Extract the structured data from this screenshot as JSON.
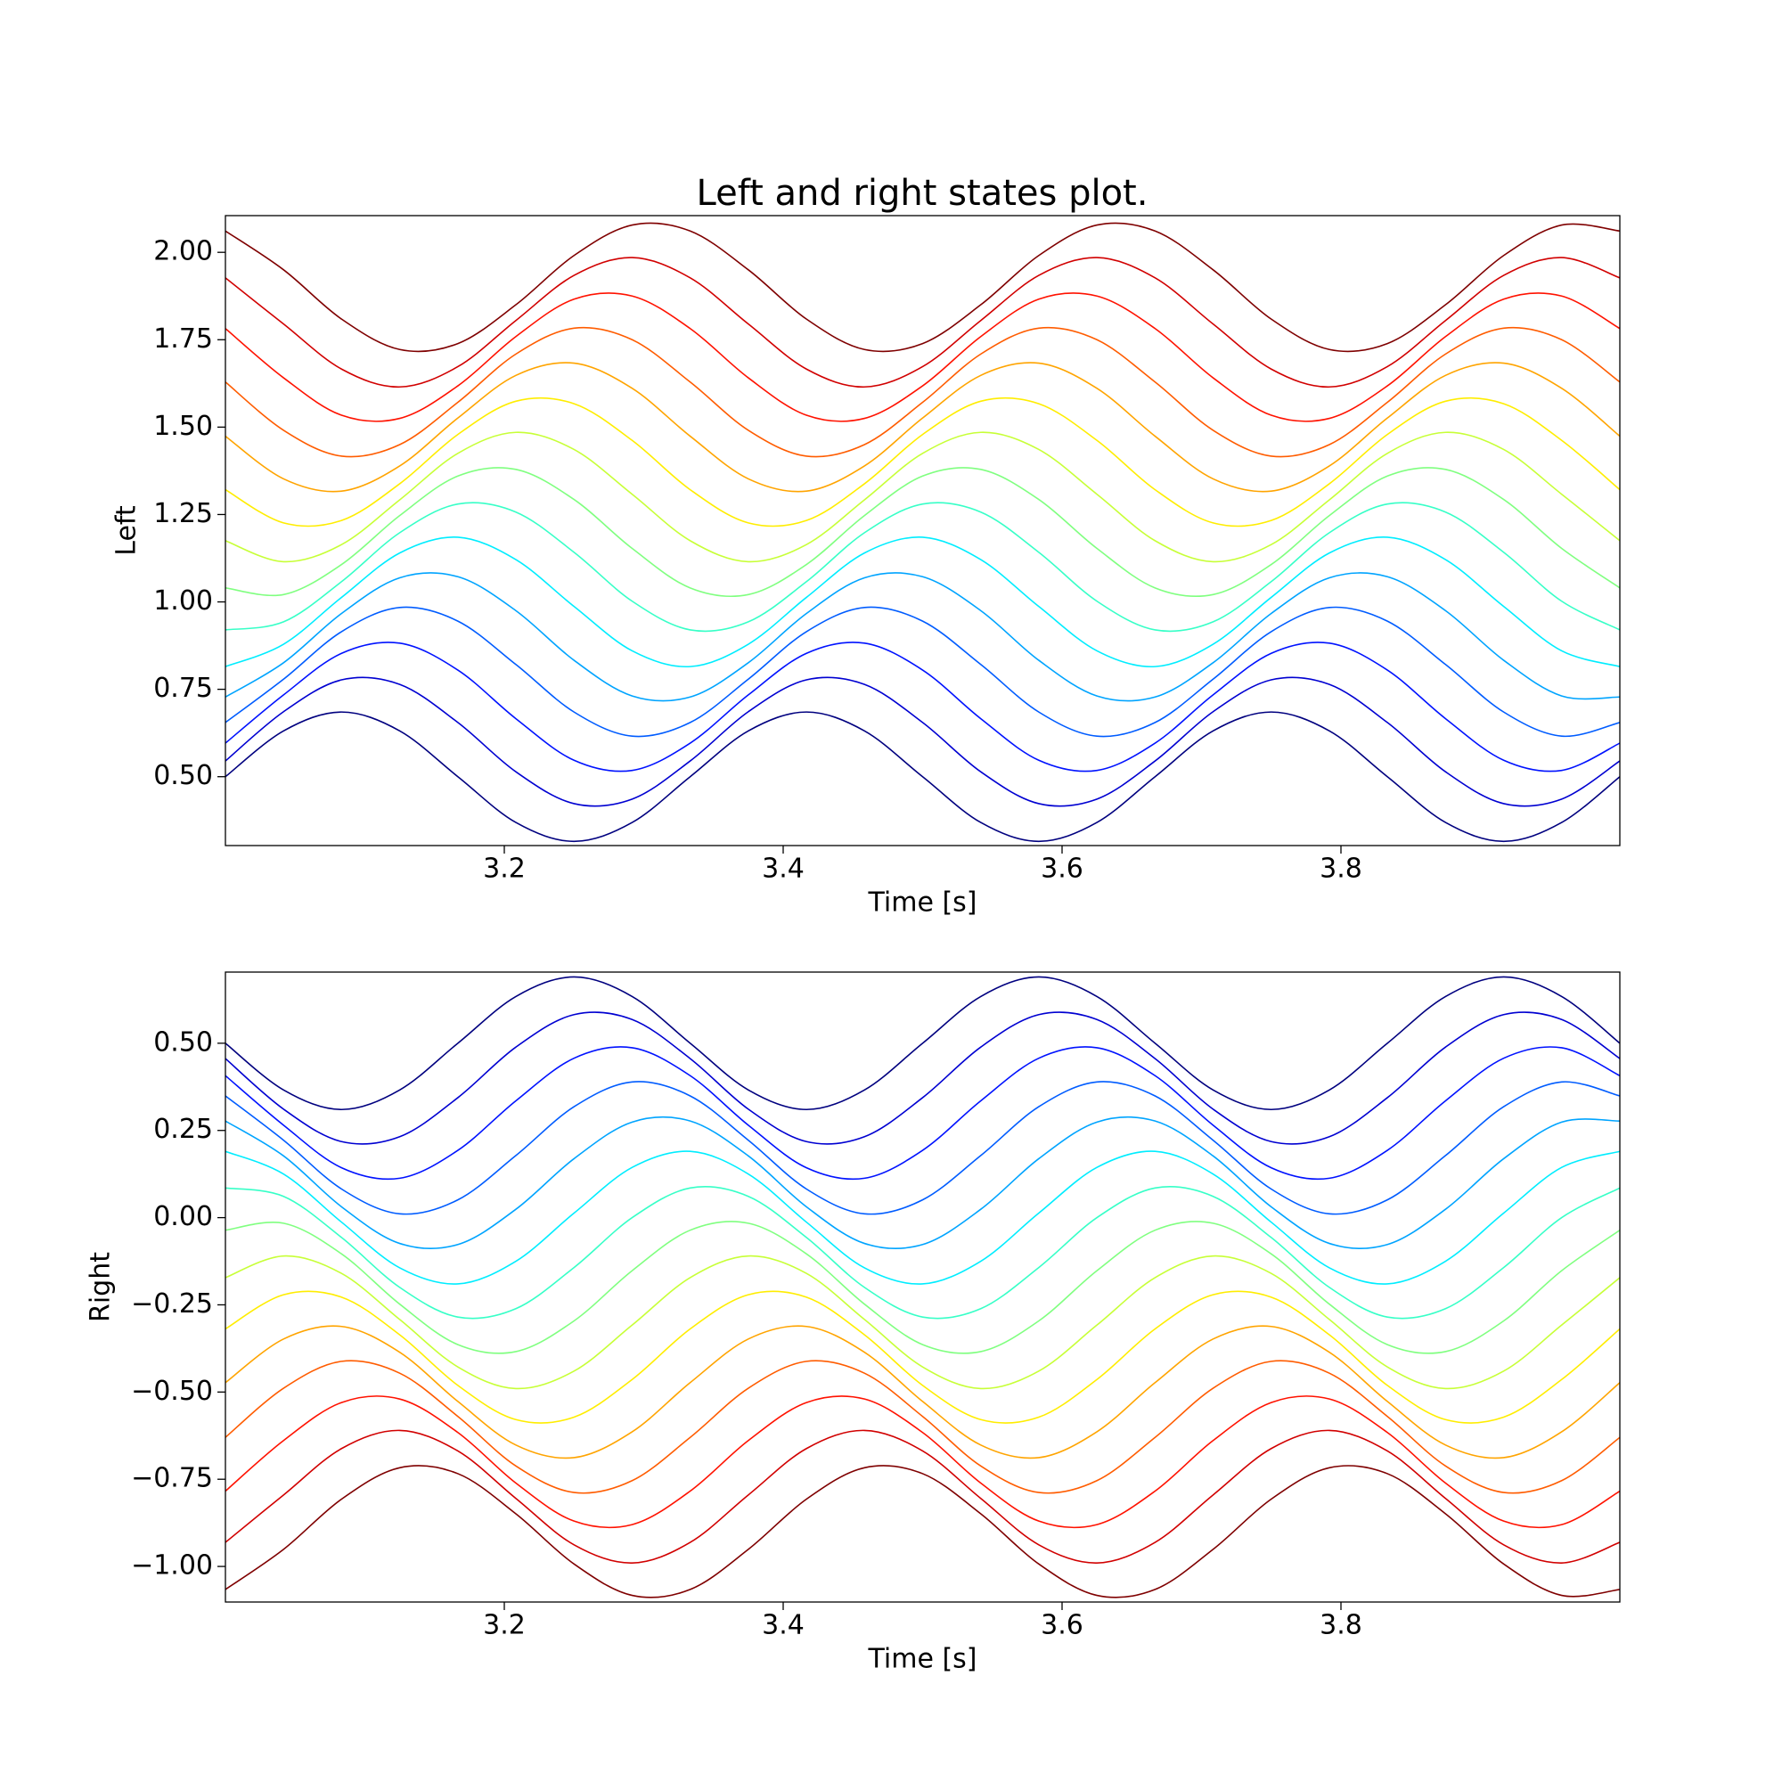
{
  "chart_data": [
    {
      "type": "line",
      "title": "Left and right states plot.",
      "xlabel": "Time [s]",
      "ylabel": "Left",
      "x": [
        3.0,
        3.0417,
        3.0833,
        3.125,
        3.1667,
        3.2083,
        3.25,
        3.2917,
        3.3333,
        3.375,
        3.4167,
        3.4583,
        3.5,
        3.5417,
        3.5833,
        3.625,
        3.6667,
        3.7083,
        3.75,
        3.7917,
        3.8333,
        3.875,
        3.9167,
        3.9583,
        4.0
      ],
      "xlim": [
        3.0,
        4.0
      ],
      "xticks": [
        3.2,
        3.4,
        3.6,
        3.8
      ],
      "ylim": [
        0.303,
        2.105
      ],
      "yticks": [
        {
          "value": 0.5,
          "label": "0.50"
        },
        {
          "value": 0.75,
          "label": "0.75"
        },
        {
          "value": 1,
          "label": "1.00"
        },
        {
          "value": 1.25,
          "label": "1.25"
        },
        {
          "value": 1.5,
          "label": "1.50"
        },
        {
          "value": 1.75,
          "label": "1.75"
        },
        {
          "value": 2,
          "label": "2.00"
        }
      ],
      "series": [
        {
          "color": "#00007f",
          "values": [
            0.5,
            0.631,
            0.685,
            0.631,
            0.5,
            0.369,
            0.315,
            0.369,
            0.5,
            0.631,
            0.685,
            0.631,
            0.5,
            0.369,
            0.315,
            0.369,
            0.5,
            0.631,
            0.685,
            0.631,
            0.5,
            0.369,
            0.315,
            0.369,
            0.5
          ]
        },
        {
          "color": "#0000d1",
          "values": [
            0.545,
            0.686,
            0.777,
            0.764,
            0.655,
            0.514,
            0.423,
            0.436,
            0.545,
            0.686,
            0.777,
            0.764,
            0.655,
            0.514,
            0.423,
            0.436,
            0.545,
            0.686,
            0.777,
            0.764,
            0.655,
            0.514,
            0.423,
            0.436,
            0.545
          ]
        },
        {
          "color": "#0012ff",
          "values": [
            0.596,
            0.734,
            0.853,
            0.882,
            0.805,
            0.666,
            0.547,
            0.518,
            0.596,
            0.734,
            0.853,
            0.882,
            0.805,
            0.666,
            0.547,
            0.518,
            0.596,
            0.734,
            0.853,
            0.882,
            0.805,
            0.666,
            0.547,
            0.518,
            0.596
          ]
        },
        {
          "color": "#005cff",
          "values": [
            0.655,
            0.779,
            0.915,
            0.984,
            0.945,
            0.821,
            0.685,
            0.616,
            0.655,
            0.779,
            0.915,
            0.984,
            0.945,
            0.821,
            0.685,
            0.616,
            0.655,
            0.779,
            0.915,
            0.984,
            0.945,
            0.821,
            0.685,
            0.616,
            0.655
          ]
        },
        {
          "color": "#00a4ff",
          "values": [
            0.728,
            0.826,
            0.967,
            1.069,
            1.072,
            0.975,
            0.833,
            0.731,
            0.728,
            0.826,
            0.967,
            1.069,
            1.072,
            0.975,
            0.833,
            0.731,
            0.728,
            0.826,
            0.967,
            1.069,
            1.072,
            0.975,
            0.833,
            0.731,
            0.728
          ]
        },
        {
          "color": "#00edff",
          "values": [
            0.815,
            0.879,
            1.013,
            1.14,
            1.185,
            1.121,
            0.987,
            0.86,
            0.815,
            0.879,
            1.013,
            1.14,
            1.185,
            1.121,
            0.987,
            0.86,
            0.815,
            0.879,
            1.013,
            1.14,
            1.185,
            1.121,
            0.987,
            0.86,
            0.815
          ]
        },
        {
          "color": "#37ffc7",
          "values": [
            0.92,
            0.943,
            1.058,
            1.198,
            1.28,
            1.257,
            1.142,
            1.002,
            0.92,
            0.943,
            1.058,
            1.198,
            1.28,
            1.257,
            1.142,
            1.002,
            0.92,
            0.943,
            1.058,
            1.198,
            1.28,
            1.257,
            1.142,
            1.002,
            0.92
          ]
        },
        {
          "color": "#80ff80",
          "values": [
            1.04,
            1.021,
            1.107,
            1.247,
            1.36,
            1.379,
            1.293,
            1.153,
            1.04,
            1.021,
            1.107,
            1.247,
            1.36,
            1.379,
            1.293,
            1.153,
            1.04,
            1.021,
            1.107,
            1.247,
            1.36,
            1.379,
            1.293,
            1.153,
            1.04
          ]
        },
        {
          "color": "#c7ff37",
          "values": [
            1.175,
            1.115,
            1.164,
            1.292,
            1.425,
            1.485,
            1.436,
            1.308,
            1.175,
            1.115,
            1.164,
            1.292,
            1.425,
            1.485,
            1.436,
            1.308,
            1.175,
            1.115,
            1.164,
            1.292,
            1.425,
            1.485,
            1.436,
            1.308,
            1.175
          ]
        },
        {
          "color": "#ffed00",
          "values": [
            1.321,
            1.226,
            1.233,
            1.338,
            1.479,
            1.574,
            1.567,
            1.462,
            1.321,
            1.226,
            1.233,
            1.338,
            1.479,
            1.574,
            1.567,
            1.462,
            1.321,
            1.226,
            1.233,
            1.338,
            1.479,
            1.574,
            1.567,
            1.462,
            1.321
          ]
        },
        {
          "color": "#ffa400",
          "values": [
            1.474,
            1.352,
            1.317,
            1.389,
            1.526,
            1.648,
            1.683,
            1.611,
            1.474,
            1.352,
            1.317,
            1.389,
            1.526,
            1.648,
            1.683,
            1.611,
            1.474,
            1.352,
            1.317,
            1.389,
            1.526,
            1.648,
            1.683,
            1.611,
            1.474
          ]
        },
        {
          "color": "#ff5c00",
          "values": [
            1.629,
            1.491,
            1.417,
            1.45,
            1.571,
            1.709,
            1.783,
            1.75,
            1.629,
            1.491,
            1.417,
            1.45,
            1.571,
            1.709,
            1.783,
            1.75,
            1.629,
            1.491,
            1.417,
            1.45,
            1.571,
            1.709,
            1.783,
            1.75,
            1.629
          ]
        },
        {
          "color": "#ff1200",
          "values": [
            1.782,
            1.641,
            1.534,
            1.525,
            1.618,
            1.759,
            1.866,
            1.875,
            1.782,
            1.641,
            1.534,
            1.525,
            1.618,
            1.759,
            1.866,
            1.875,
            1.782,
            1.641,
            1.534,
            1.525,
            1.618,
            1.759,
            1.866,
            1.875,
            1.782
          ]
        },
        {
          "color": "#d10000",
          "values": [
            1.927,
            1.795,
            1.666,
            1.615,
            1.673,
            1.805,
            1.934,
            1.985,
            1.927,
            1.795,
            1.666,
            1.615,
            1.673,
            1.805,
            1.934,
            1.985,
            1.927,
            1.795,
            1.666,
            1.615,
            1.673,
            1.805,
            1.934,
            1.985,
            1.927
          ]
        },
        {
          "color": "#7f0000",
          "values": [
            2.061,
            1.95,
            1.809,
            1.722,
            1.739,
            1.85,
            1.991,
            2.078,
            2.061,
            1.95,
            1.809,
            1.722,
            1.739,
            1.85,
            1.991,
            2.078,
            2.061,
            1.95,
            1.809,
            1.722,
            1.739,
            1.85,
            1.991,
            2.078,
            2.061
          ]
        }
      ]
    },
    {
      "type": "line",
      "xlabel": "Time [s]",
      "ylabel": "Right",
      "x": [
        3.0,
        3.0417,
        3.0833,
        3.125,
        3.1667,
        3.2083,
        3.25,
        3.2917,
        3.3333,
        3.375,
        3.4167,
        3.4583,
        3.5,
        3.5417,
        3.5833,
        3.625,
        3.6667,
        3.7083,
        3.75,
        3.7917,
        3.8333,
        3.875,
        3.9167,
        3.9583,
        4.0
      ],
      "xlim": [
        3.0,
        4.0
      ],
      "xticks": [
        3.2,
        3.4,
        3.6,
        3.8
      ],
      "ylim": [
        -1.102,
        0.704
      ],
      "yticks": [
        {
          "value": -1,
          "label": "−1.00"
        },
        {
          "value": -0.75,
          "label": "−0.75"
        },
        {
          "value": -0.5,
          "label": "−0.50"
        },
        {
          "value": -0.25,
          "label": "−0.25"
        },
        {
          "value": 0,
          "label": "0.00"
        },
        {
          "value": 0.25,
          "label": "0.25"
        },
        {
          "value": 0.5,
          "label": "0.50"
        }
      ],
      "series": [
        {
          "color": "#00007f",
          "values": [
            0.5,
            0.366,
            0.31,
            0.366,
            0.5,
            0.634,
            0.69,
            0.634,
            0.5,
            0.366,
            0.31,
            0.366,
            0.5,
            0.634,
            0.69,
            0.634,
            0.5,
            0.366,
            0.31,
            0.366,
            0.5,
            0.634,
            0.69,
            0.634,
            0.5
          ]
        },
        {
          "color": "#0000d1",
          "values": [
            0.456,
            0.311,
            0.218,
            0.232,
            0.344,
            0.489,
            0.582,
            0.568,
            0.456,
            0.311,
            0.218,
            0.232,
            0.344,
            0.489,
            0.582,
            0.568,
            0.456,
            0.311,
            0.218,
            0.232,
            0.344,
            0.489,
            0.582,
            0.568,
            0.456
          ]
        },
        {
          "color": "#0012ff",
          "values": [
            0.407,
            0.265,
            0.143,
            0.113,
            0.193,
            0.335,
            0.457,
            0.487,
            0.407,
            0.265,
            0.143,
            0.113,
            0.193,
            0.335,
            0.457,
            0.487,
            0.407,
            0.265,
            0.143,
            0.113,
            0.193,
            0.335,
            0.457,
            0.487,
            0.407
          ]
        },
        {
          "color": "#005cff",
          "values": [
            0.349,
            0.222,
            0.082,
            0.011,
            0.051,
            0.178,
            0.318,
            0.389,
            0.349,
            0.222,
            0.082,
            0.011,
            0.051,
            0.178,
            0.318,
            0.389,
            0.349,
            0.222,
            0.082,
            0.011,
            0.051,
            0.178,
            0.318,
            0.389,
            0.349
          ]
        },
        {
          "color": "#00a4ff",
          "values": [
            0.277,
            0.177,
            0.031,
            -0.074,
            -0.077,
            0.024,
            0.169,
            0.274,
            0.277,
            0.177,
            0.031,
            -0.074,
            -0.077,
            0.024,
            0.169,
            0.274,
            0.277,
            0.177,
            0.031,
            -0.074,
            -0.077,
            0.024,
            0.169,
            0.274,
            0.277
          ]
        },
        {
          "color": "#00edff",
          "values": [
            0.19,
            0.125,
            -0.013,
            -0.144,
            -0.19,
            -0.125,
            0.013,
            0.144,
            0.19,
            0.125,
            -0.013,
            -0.144,
            -0.19,
            -0.125,
            0.013,
            0.144,
            0.19,
            0.125,
            -0.013,
            -0.144,
            -0.19,
            -0.125,
            0.013,
            0.144,
            0.19
          ]
        },
        {
          "color": "#37ffc7",
          "values": [
            0.085,
            0.061,
            -0.057,
            -0.2,
            -0.285,
            -0.261,
            -0.143,
            0.0,
            0.085,
            0.061,
            -0.057,
            -0.2,
            -0.285,
            -0.261,
            -0.143,
            0.0,
            0.085,
            0.061,
            -0.057,
            -0.2,
            -0.285,
            -0.261,
            -0.143,
            0.0,
            0.085
          ]
        },
        {
          "color": "#80ff80",
          "values": [
            -0.036,
            -0.016,
            -0.104,
            -0.248,
            -0.364,
            -0.384,
            -0.296,
            -0.152,
            -0.036,
            -0.016,
            -0.104,
            -0.248,
            -0.364,
            -0.384,
            -0.296,
            -0.152,
            -0.036,
            -0.016,
            -0.104,
            -0.248,
            -0.364,
            -0.384,
            -0.296,
            -0.152,
            -0.036
          ]
        },
        {
          "color": "#c7ff37",
          "values": [
            -0.172,
            -0.11,
            -0.16,
            -0.292,
            -0.428,
            -0.49,
            -0.44,
            -0.308,
            -0.172,
            -0.11,
            -0.16,
            -0.292,
            -0.428,
            -0.49,
            -0.44,
            -0.308,
            -0.172,
            -0.11,
            -0.16,
            -0.292,
            -0.428,
            -0.49,
            -0.44,
            -0.308,
            -0.172
          ]
        },
        {
          "color": "#ffed00",
          "values": [
            -0.319,
            -0.221,
            -0.228,
            -0.336,
            -0.481,
            -0.579,
            -0.572,
            -0.464,
            -0.319,
            -0.221,
            -0.228,
            -0.336,
            -0.481,
            -0.579,
            -0.572,
            -0.464,
            -0.319,
            -0.221,
            -0.228,
            -0.336,
            -0.481,
            -0.579,
            -0.572,
            -0.464,
            -0.319
          ]
        },
        {
          "color": "#ffa400",
          "values": [
            -0.473,
            -0.348,
            -0.312,
            -0.386,
            -0.527,
            -0.652,
            -0.688,
            -0.614,
            -0.473,
            -0.348,
            -0.312,
            -0.386,
            -0.527,
            -0.652,
            -0.688,
            -0.614,
            -0.473,
            -0.348,
            -0.312,
            -0.386,
            -0.527,
            -0.652,
            -0.688,
            -0.614,
            -0.473
          ]
        },
        {
          "color": "#ff5c00",
          "values": [
            -0.63,
            -0.489,
            -0.412,
            -0.446,
            -0.57,
            -0.712,
            -0.788,
            -0.754,
            -0.63,
            -0.489,
            -0.412,
            -0.446,
            -0.57,
            -0.712,
            -0.788,
            -0.754,
            -0.63,
            -0.489,
            -0.412,
            -0.446,
            -0.57,
            -0.712,
            -0.788,
            -0.754,
            -0.63
          ]
        },
        {
          "color": "#ff1200",
          "values": [
            -0.784,
            -0.639,
            -0.53,
            -0.52,
            -0.616,
            -0.761,
            -0.87,
            -0.88,
            -0.784,
            -0.639,
            -0.53,
            -0.52,
            -0.616,
            -0.761,
            -0.87,
            -0.88,
            -0.784,
            -0.639,
            -0.53,
            -0.52,
            -0.616,
            -0.761,
            -0.87,
            -0.88,
            -0.784
          ]
        },
        {
          "color": "#d10000",
          "values": [
            -0.931,
            -0.795,
            -0.662,
            -0.61,
            -0.669,
            -0.805,
            -0.938,
            -0.99,
            -0.931,
            -0.795,
            -0.662,
            -0.61,
            -0.669,
            -0.805,
            -0.938,
            -0.99,
            -0.931,
            -0.795,
            -0.662,
            -0.61,
            -0.669,
            -0.805,
            -0.938,
            -0.99,
            -0.931
          ]
        },
        {
          "color": "#7f0000",
          "values": [
            -1.066,
            -0.951,
            -0.807,
            -0.717,
            -0.734,
            -0.849,
            -0.993,
            -1.083,
            -1.066,
            -0.951,
            -0.807,
            -0.717,
            -0.734,
            -0.849,
            -0.993,
            -1.083,
            -1.066,
            -0.951,
            -0.807,
            -0.717,
            -0.734,
            -0.849,
            -0.993,
            -1.083,
            -1.066
          ]
        }
      ]
    }
  ]
}
